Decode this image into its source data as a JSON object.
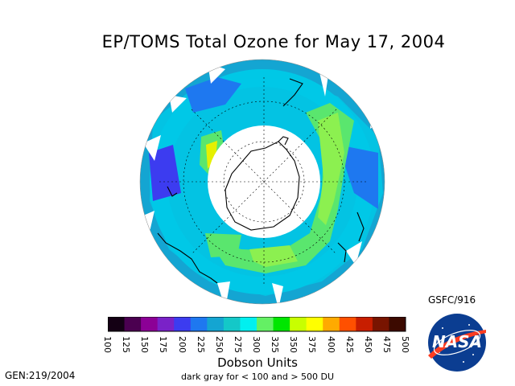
{
  "title": "EP/TOMS Total Ozone for May 17, 2004",
  "credit": "GSFC/916",
  "generated": "GEN:219/2004",
  "legend": {
    "units": "Dobson Units",
    "note": "dark gray for < 100 and > 500 DU",
    "ticks": [
      "100",
      "125",
      "150",
      "175",
      "200",
      "225",
      "250",
      "275",
      "300",
      "325",
      "350",
      "375",
      "400",
      "425",
      "450",
      "475",
      "500"
    ],
    "colors": [
      "#140014",
      "#4b0050",
      "#8c0096",
      "#7a22c8",
      "#3c3cf0",
      "#1e78f0",
      "#14a5d2",
      "#14c8c8",
      "#00f0f0",
      "#64f064",
      "#00e600",
      "#c8ff00",
      "#ffff00",
      "#ffaa00",
      "#ff5000",
      "#c81e00",
      "#781400",
      "#3c0a00"
    ]
  },
  "logo_text": "NASA",
  "map": {
    "projection": "south polar stereographic",
    "palette": {
      "ocean_low": "#1e78f0",
      "band_a": "#00c8e6",
      "band_b": "#14a5d2",
      "band_c": "#5ae66e",
      "band_d": "#8cf050",
      "band_e": "#e6f000",
      "polar_gap": "#ffffff",
      "coast": "#000000"
    }
  }
}
